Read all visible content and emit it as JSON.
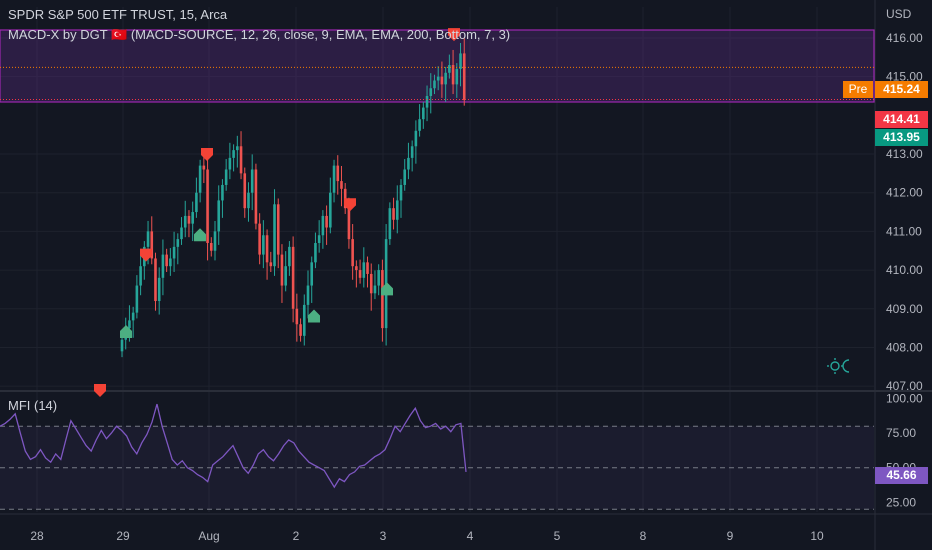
{
  "legend": {
    "symbol_line": "SPDR S&P 500 ETF TRUST, 15, Arca",
    "indicator_line": "MACD-X by DGT 🇹🇷 (MACD-SOURCE, 12, 26, close, 9, EMA, EMA, 200, Bottom, 7, 3)",
    "mfi_label": "MFI (14)"
  },
  "price_axis": {
    "currency": "USD",
    "ticks": [
      "416.00",
      "415.00",
      "413.00",
      "412.00",
      "411.00",
      "410.00",
      "409.00",
      "408.00",
      "407.00"
    ],
    "tick_values": [
      416,
      415,
      413,
      412,
      411,
      410,
      409,
      408,
      407
    ]
  },
  "mfi_axis": {
    "ticks": [
      "100.00",
      "75.00",
      "50.00",
      "25.00"
    ],
    "tick_values": [
      100,
      75,
      50,
      25
    ]
  },
  "time_axis": {
    "labels": [
      "28",
      "29",
      "Aug",
      "2",
      "3",
      "4",
      "5",
      "8",
      "9",
      "10"
    ]
  },
  "tags": {
    "pre_label": "Pre",
    "pre_price": "415.24",
    "last_price": "414.41",
    "bid_price": "413.95",
    "mfi_value": "45.66"
  },
  "colors": {
    "background": "#131722",
    "up": "#26a69a",
    "down": "#ef5350",
    "pre": "#f57c00",
    "mfi_line": "#7e57c2",
    "band": "#5b2c83"
  },
  "chart_data": {
    "type": "candlestick",
    "price_range": [
      406.9,
      416.8
    ],
    "mfi_range": [
      18,
      104
    ],
    "candles_last": [
      408.2,
      408.5,
      408.7,
      408.9,
      409.6,
      410.1,
      410.6,
      411.0,
      410.3,
      409.2,
      409.8,
      410.4,
      410.1,
      410.3,
      410.6,
      410.8,
      411.1,
      411.4,
      411.2,
      411.5,
      412.0,
      412.7,
      412.6,
      410.7,
      410.5,
      411.0,
      411.8,
      412.2,
      412.6,
      412.9,
      413.1,
      413.2,
      412.5,
      411.6,
      412.0,
      412.6,
      411.2,
      410.4,
      410.9,
      410.2,
      410.1,
      411.7,
      410.4,
      409.6,
      410.1,
      410.6,
      409.0,
      408.6,
      408.3,
      409.1,
      409.6,
      410.2,
      410.7,
      410.9,
      411.4,
      411.1,
      412.0,
      412.7,
      412.3,
      412.1,
      411.6,
      410.8,
      410.1,
      410.0,
      409.8,
      410.2,
      409.9,
      409.4,
      409.6,
      410.0,
      408.5,
      410.8,
      411.6,
      411.3,
      411.8,
      412.2,
      412.6,
      412.9,
      413.2,
      413.6,
      413.9,
      414.2,
      414.5,
      414.7,
      414.9,
      415.0,
      414.8,
      415.1,
      415.3,
      414.8,
      415.2,
      415.6,
      414.4
    ],
    "mfi_values": [
      80,
      82,
      85,
      89,
      75,
      62,
      56,
      58,
      63,
      57,
      54,
      60,
      56,
      70,
      84,
      78,
      72,
      66,
      62,
      70,
      77,
      71,
      75,
      80,
      77,
      73,
      65,
      60,
      68,
      74,
      83,
      96,
      80,
      68,
      56,
      52,
      55,
      50,
      48,
      45,
      43,
      40,
      52,
      55,
      58,
      62,
      66,
      58,
      50,
      46,
      52,
      60,
      63,
      58,
      55,
      60,
      66,
      70,
      68,
      62,
      58,
      54,
      52,
      50,
      48,
      42,
      36,
      42,
      40,
      45,
      47,
      51,
      52,
      55,
      58,
      60,
      63,
      71,
      80,
      76,
      82,
      88,
      93,
      84,
      79,
      80,
      82,
      78,
      80,
      76,
      81,
      82,
      47
    ],
    "up_signals": [
      408.4,
      410.9,
      408.8,
      409.5
    ],
    "down_signals": [
      406.9,
      410.4,
      413.0,
      411.7,
      416.1
    ]
  }
}
